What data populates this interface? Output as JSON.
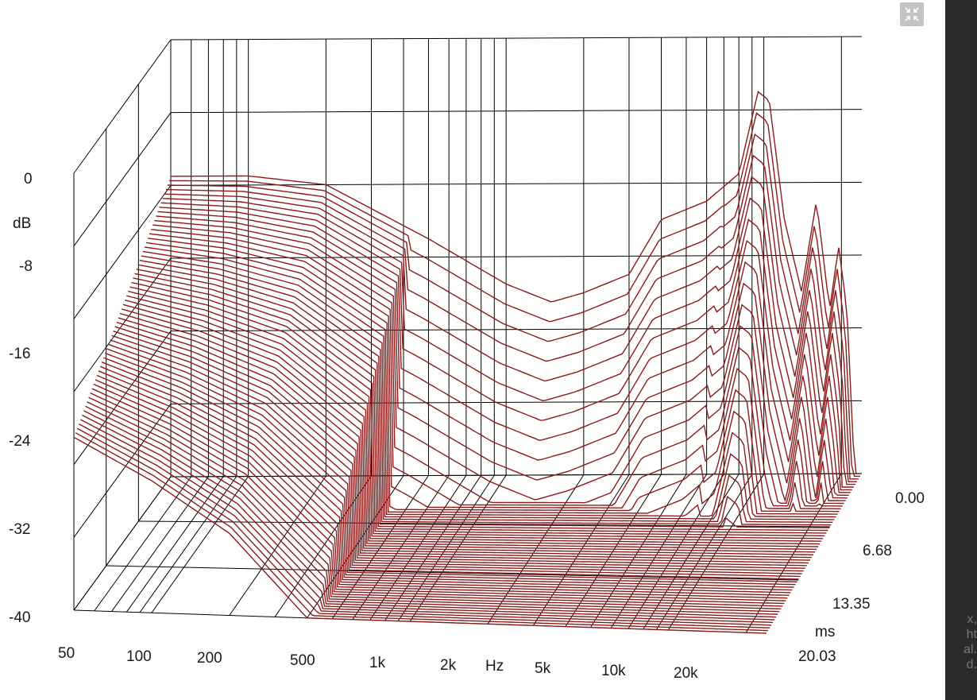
{
  "chart_data": {
    "type": "waterfall-3d",
    "y_axis": {
      "unit": "dB",
      "tick_labels": [
        "0",
        "-8",
        "-16",
        "-24",
        "-32",
        "-40"
      ],
      "ylim": [
        -40,
        8
      ]
    },
    "x_axis": {
      "unit": "Hz",
      "scale": "log",
      "tick_labels": [
        "50",
        "100",
        "200",
        "500",
        "1k",
        "2k",
        "5k",
        "10k",
        "20k"
      ],
      "xlim": [
        50,
        24000
      ]
    },
    "z_axis": {
      "unit": "ms",
      "tick_labels": [
        "0.00",
        "6.68",
        "13.35",
        "20.03"
      ],
      "zlim": [
        0,
        20.03
      ]
    },
    "slices": 60,
    "line_color": "#8b1a1a",
    "grid_color": "#000000",
    "grid": true,
    "floor_db": -40,
    "first_slice_profile": [
      {
        "hz": 50,
        "db": -7
      },
      {
        "hz": 100,
        "db": -7
      },
      {
        "hz": 200,
        "db": -8
      },
      {
        "hz": 500,
        "db": -14
      },
      {
        "hz": 1000,
        "db": -19
      },
      {
        "hz": 1500,
        "db": -21
      },
      {
        "hz": 2000,
        "db": -20
      },
      {
        "hz": 3000,
        "db": -18
      },
      {
        "hz": 4000,
        "db": -12
      },
      {
        "hz": 6000,
        "db": -10
      },
      {
        "hz": 8000,
        "db": -7
      },
      {
        "hz": 9500,
        "db": 2
      },
      {
        "hz": 10500,
        "db": 1
      },
      {
        "hz": 12000,
        "db": -12
      },
      {
        "hz": 14000,
        "db": -20
      },
      {
        "hz": 16000,
        "db": -10
      },
      {
        "hz": 18000,
        "db": -22
      },
      {
        "hz": 19500,
        "db": -15
      },
      {
        "hz": 21000,
        "db": -22
      },
      {
        "hz": 22500,
        "db": -40
      }
    ],
    "last_slice_profile": [
      {
        "hz": 50,
        "db": -18
      },
      {
        "hz": 100,
        "db": -30
      },
      {
        "hz": 200,
        "db": -40
      }
    ]
  },
  "ui": {
    "collapse_icon": "collapse-icon",
    "right_strip_text": "x,\nht\nal.\nd."
  }
}
